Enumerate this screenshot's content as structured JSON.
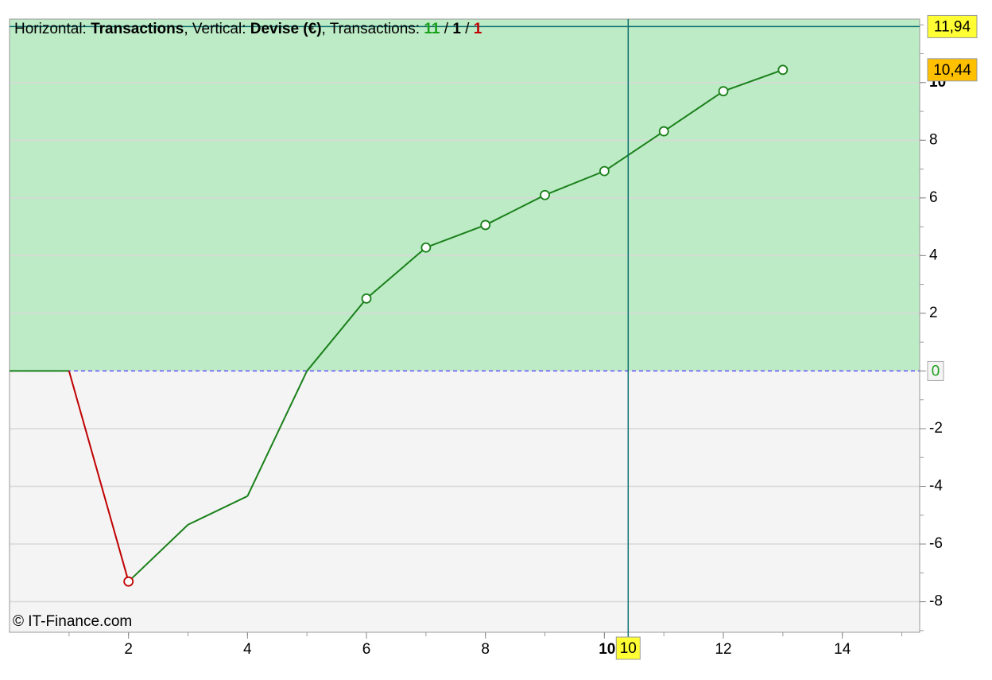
{
  "chart_data": {
    "type": "line",
    "title": [
      {
        "text": "Horizontal: "
      },
      {
        "text": "Transactions",
        "bold": true
      },
      {
        "text": ", Vertical: "
      },
      {
        "text": "Devise (€)",
        "bold": true
      },
      {
        "text": ", Transactions: "
      },
      {
        "text": "11",
        "bold": true,
        "color": "#1aa01a"
      },
      {
        "text": " / "
      },
      {
        "text": "1",
        "bold": true
      },
      {
        "text": " / "
      },
      {
        "text": "1",
        "bold": true,
        "color": "#c00000"
      }
    ],
    "copyright": "© IT-Finance.com",
    "x": [
      0,
      1,
      2,
      3,
      4,
      5,
      6,
      7,
      8,
      9,
      10,
      11,
      12,
      13
    ],
    "series": [
      {
        "name": "Transactions",
        "color": "#1a801a",
        "loss_color": "#c00000",
        "values": [
          0,
          0,
          -7.3,
          -5.33,
          -4.34,
          0,
          2.51,
          4.28,
          5.06,
          6.1,
          6.93,
          8.31,
          9.7,
          10.44
        ],
        "losses": [
          false,
          false,
          true,
          false,
          false,
          false,
          false,
          false,
          false,
          false,
          false,
          false,
          false,
          false
        ],
        "markers": [
          false,
          false,
          true,
          false,
          false,
          false,
          true,
          true,
          true,
          true,
          true,
          true,
          true,
          true
        ],
        "value_labels": [
          null,
          null,
          null,
          null,
          null,
          null,
          null,
          null,
          null,
          null,
          null,
          null,
          null,
          "10,44"
        ]
      }
    ],
    "xlim": [
      0,
      15.3
    ],
    "xticks": [
      2,
      4,
      6,
      8,
      10,
      12,
      14
    ],
    "bold_xtick": 10,
    "ylim": [
      -9.06,
      12.2
    ],
    "yticks": [
      -8,
      -6,
      -4,
      -2,
      0,
      2,
      4,
      6,
      8,
      10
    ],
    "bold_ytick": 10,
    "grid": true,
    "positive_fill": "#bdebc6",
    "negative_fill": "#f4f4f4",
    "crosshair": {
      "x": 10.4,
      "y": 11.94,
      "x_label": "10",
      "y_label": "11,94"
    }
  }
}
